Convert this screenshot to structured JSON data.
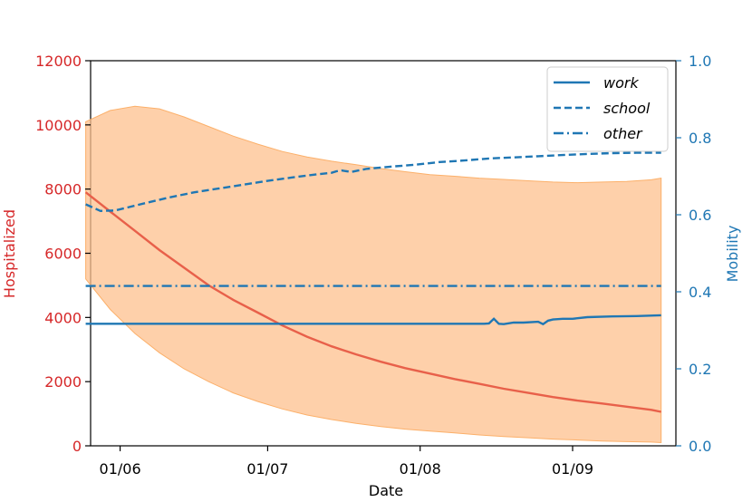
{
  "chart_data": {
    "type": "line",
    "title": "",
    "xlabel": "Date",
    "ylabel_left": "Hospitalized",
    "ylabel_right": "Mobility",
    "colors": {
      "left_axis": "#d62728",
      "right_axis": "#1f77b4",
      "hospitalized": "#e8604a",
      "band": "#fdc08d",
      "band_edge": "#fcb06a",
      "mobility": "#1f77b4"
    },
    "x_day_range": [
      -6,
      113
    ],
    "x_ticks": [
      {
        "day": 0,
        "label": "01/06"
      },
      {
        "day": 30,
        "label": "01/07"
      },
      {
        "day": 61,
        "label": "01/08"
      },
      {
        "day": 92,
        "label": "01/09"
      }
    ],
    "y_left": {
      "lim": [
        0,
        12000
      ],
      "ticks": [
        "0",
        "2000",
        "4000",
        "6000",
        "8000",
        "10000",
        "12000"
      ]
    },
    "y_right": {
      "lim": [
        0.0,
        1.0
      ],
      "ticks": [
        "0.0",
        "0.2",
        "0.4",
        "0.6",
        "0.8",
        "1.0"
      ]
    },
    "series_hospitalized": {
      "name": "Hospitalized",
      "days": [
        -7,
        -2,
        3,
        8,
        13,
        18,
        23,
        28,
        33,
        38,
        43,
        48,
        53,
        58,
        63,
        68,
        73,
        78,
        83,
        88,
        93,
        98,
        103,
        108,
        110
      ],
      "median": [
        7900,
        7300,
        6700,
        6100,
        5550,
        5000,
        4550,
        4150,
        3750,
        3400,
        3100,
        2850,
        2620,
        2420,
        2250,
        2080,
        1930,
        1780,
        1650,
        1520,
        1410,
        1320,
        1220,
        1120,
        1060
      ],
      "upper": [
        10100,
        10450,
        10580,
        10500,
        10250,
        9950,
        9650,
        9400,
        9170,
        9000,
        8870,
        8760,
        8640,
        8540,
        8450,
        8400,
        8340,
        8300,
        8260,
        8220,
        8200,
        8220,
        8240,
        8290,
        8340
      ],
      "lower": [
        5200,
        4250,
        3500,
        2900,
        2400,
        2000,
        1650,
        1380,
        1150,
        960,
        820,
        700,
        600,
        520,
        460,
        400,
        340,
        290,
        250,
        210,
        180,
        150,
        130,
        115,
        100
      ]
    },
    "series_mobility": [
      {
        "name": "work",
        "style": "solid",
        "days": [
          -7,
          72,
          74,
          75,
          76,
          77,
          78,
          80,
          82,
          85,
          86,
          87,
          88,
          90,
          92,
          95,
          100,
          105,
          110
        ],
        "values": [
          0.317,
          0.317,
          0.317,
          0.318,
          0.33,
          0.317,
          0.316,
          0.32,
          0.32,
          0.322,
          0.316,
          0.325,
          0.328,
          0.33,
          0.33,
          0.334,
          0.336,
          0.337,
          0.339
        ]
      },
      {
        "name": "school",
        "style": "dashed",
        "days": [
          -7,
          -4,
          -1,
          5,
          10,
          15,
          20,
          25,
          30,
          35,
          40,
          43,
          44,
          45,
          47,
          50,
          55,
          60,
          65,
          70,
          75,
          80,
          85,
          90,
          95,
          100,
          105,
          110
        ],
        "values": [
          0.627,
          0.61,
          0.611,
          0.63,
          0.645,
          0.658,
          0.668,
          0.678,
          0.688,
          0.697,
          0.705,
          0.709,
          0.713,
          0.715,
          0.711,
          0.719,
          0.725,
          0.73,
          0.737,
          0.741,
          0.746,
          0.749,
          0.752,
          0.755,
          0.758,
          0.76,
          0.761,
          0.761
        ]
      },
      {
        "name": "other",
        "style": "dashdot",
        "days": [
          -7,
          110
        ],
        "values": [
          0.415,
          0.415
        ]
      }
    ],
    "legend": {
      "position": "top-right",
      "entries": [
        "work",
        "school",
        "other"
      ]
    }
  }
}
